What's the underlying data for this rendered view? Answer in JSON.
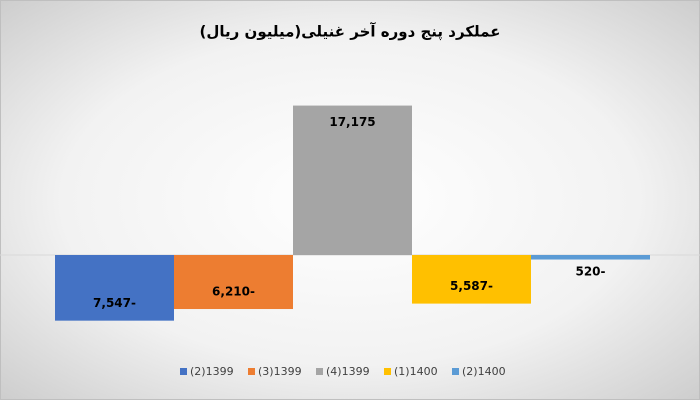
{
  "chart_data": {
    "type": "bar",
    "title": "عملکرد پنج دوره آخر  غنیلی(میلیون ریال)",
    "categories": [
      null
    ],
    "series": [
      {
        "name": "(2)1399",
        "color": "#4472c4",
        "values": [
          -7547
        ],
        "value_labels": [
          "7,547-"
        ]
      },
      {
        "name": "(3)1399",
        "color": "#ed7d31",
        "values": [
          -6210
        ],
        "value_labels": [
          "6,210-"
        ]
      },
      {
        "name": "(4)1399",
        "color": "#a5a5a5",
        "values": [
          17175
        ],
        "value_labels": [
          "17,175"
        ]
      },
      {
        "name": "(1)1400",
        "color": "#ffc000",
        "values": [
          -5587
        ],
        "value_labels": [
          "5,587-"
        ]
      },
      {
        "name": "(2)1400",
        "color": "#5b9bd5",
        "values": [
          -520
        ],
        "value_labels": [
          "520-"
        ]
      }
    ],
    "ylim": [
      -10000,
      20000
    ],
    "legend": "bottom"
  }
}
